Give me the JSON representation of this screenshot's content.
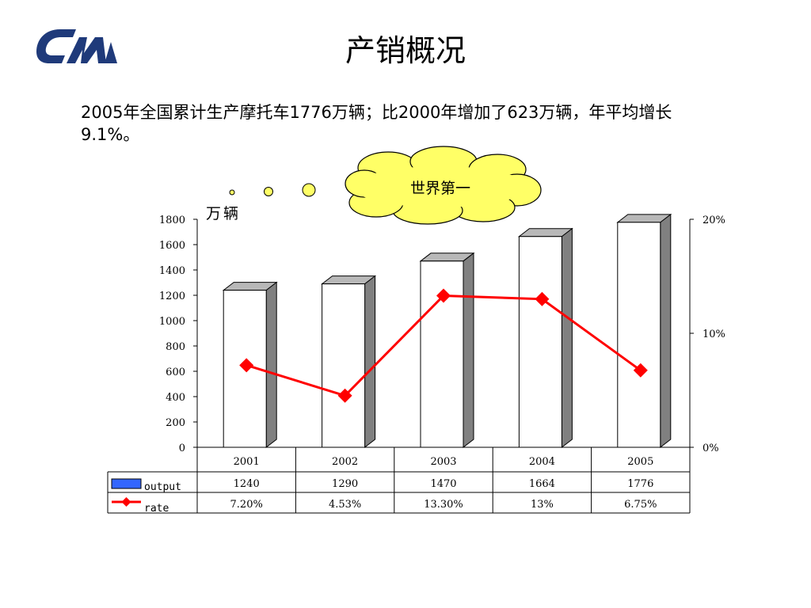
{
  "header": {
    "logo_text": "CM",
    "title": "产销概况"
  },
  "summary_text": "2005年全国累计生产摩托车1776万辆；比2000年增加了623万辆，年平均增长9.1%。",
  "callout": "世界第一",
  "colors": {
    "logo": "#1f3a7a",
    "bar_face": "#ffffff",
    "bar_side": "#808080",
    "bar_top": "#b8b8b8",
    "line": "#ff0000",
    "cloud_fill": "#ffff66",
    "legend_output": "#3366ff"
  },
  "chart_data": {
    "type": "bar",
    "y_unit_label": "万辆",
    "categories": [
      "2001",
      "2002",
      "2003",
      "2004",
      "2005"
    ],
    "ylim": [
      0,
      1800
    ],
    "yticks": [
      "0",
      "200",
      "400",
      "600",
      "800",
      "1000",
      "1200",
      "1400",
      "1600",
      "1800"
    ],
    "y2lim": [
      0,
      20
    ],
    "y2ticks": [
      "0%",
      "10%",
      "20%"
    ],
    "series": [
      {
        "name": "output",
        "kind": "bar",
        "values": [
          1240,
          1290,
          1470,
          1664,
          1776
        ],
        "labels": [
          "1240",
          "1290",
          "1470",
          "1664",
          "1776"
        ]
      },
      {
        "name": "rate",
        "kind": "line",
        "axis": "secondary",
        "values": [
          7.2,
          4.53,
          13.3,
          13,
          6.75
        ],
        "labels": [
          "7.20%",
          "4.53%",
          "13.30%",
          "13%",
          "6.75%"
        ]
      }
    ],
    "data_table": true,
    "grid": false
  }
}
